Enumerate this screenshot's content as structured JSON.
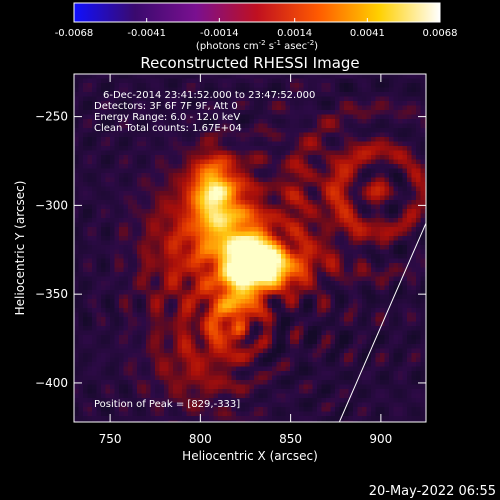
{
  "chart_data": {
    "type": "heatmap",
    "title": "Reconstructed RHESSI Image",
    "xlabel": "Heliocentric X (arcsec)",
    "ylabel": "Heliocentric Y (arcsec)",
    "xlim": [
      730,
      925
    ],
    "ylim": [
      -422,
      -226
    ],
    "x_ticks": [
      750,
      800,
      850,
      900
    ],
    "y_ticks": [
      -250,
      -300,
      -350,
      -400
    ],
    "colorbar": {
      "ticks": [
        "-0.0068",
        "-0.0041",
        "-0.0014",
        "0.0014",
        "0.0041",
        "0.0068"
      ],
      "unit_parts": [
        "(photons cm",
        "-2",
        " s",
        "-1",
        " asec",
        "-2",
        ")"
      ],
      "range": [
        -0.0068,
        0.0068
      ],
      "colors": [
        "#1010ff",
        "#3a0a6e",
        "#7a1090",
        "#c01020",
        "#ff5a00",
        "#ffd000",
        "#ffffff"
      ]
    },
    "annotations": [
      "6-Dec-2014 23:41:52.000 to 23:47:52.000",
      "Detectors: 3F 6F 7F 9F, Att 0",
      "Energy Range: 6.0 - 12.0 keV",
      "Clean     Total counts: 1.67E+04"
    ],
    "peak_label": "Position of Peak = [829,-333]",
    "peak": [
      829,
      -333
    ],
    "sources": [
      {
        "x": 829,
        "y": -333,
        "amp": 1.0,
        "sx": 10,
        "sy": 10
      },
      {
        "x": 808,
        "y": -292,
        "amp": 0.85,
        "sx": 9,
        "sy": 13
      },
      {
        "x": 818,
        "y": -318,
        "amp": 0.6,
        "sx": 14,
        "sy": 14
      },
      {
        "x": 845,
        "y": -335,
        "amp": 0.55,
        "sx": 12,
        "sy": 8
      },
      {
        "x": 820,
        "y": -350,
        "amp": 0.5,
        "sx": 10,
        "sy": 9
      },
      {
        "x": 817,
        "y": -368,
        "amp": 0.35,
        "sx": 9,
        "sy": 9
      },
      {
        "x": 790,
        "y": -325,
        "amp": 0.25,
        "sx": 18,
        "sy": 28
      },
      {
        "x": 860,
        "y": -300,
        "amp": 0.15,
        "sx": 25,
        "sy": 30
      },
      {
        "x": 895,
        "y": -290,
        "amp": 0.14,
        "sx": 22,
        "sy": 25
      },
      {
        "x": 800,
        "y": -390,
        "amp": 0.2,
        "sx": 20,
        "sy": 18
      }
    ],
    "rings": [
      {
        "x": 899,
        "y": -292,
        "r": 12,
        "amp": 0.25
      },
      {
        "x": 822,
        "y": -370,
        "r": 8,
        "amp": 0.22
      }
    ],
    "limb_line": [
      [
        877,
        -422
      ],
      [
        925,
        -310
      ]
    ]
  },
  "footer": {
    "timestamp": "20-May-2022 06:55"
  }
}
